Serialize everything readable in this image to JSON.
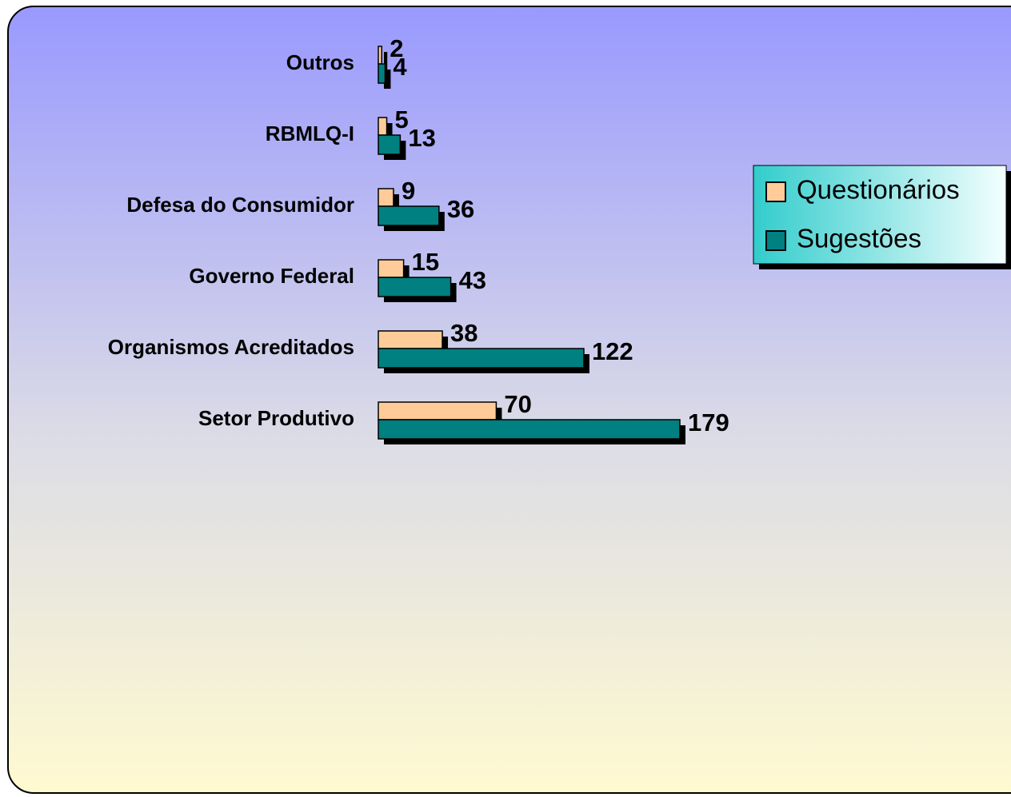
{
  "chart_data": {
    "type": "bar",
    "orientation": "horizontal",
    "categories": [
      "Outros",
      "RBMLQ-I",
      "Defesa do Consumidor",
      "Governo Federal",
      "Organismos Acreditados",
      "Setor Produtivo"
    ],
    "series": [
      {
        "name": "Questionários",
        "color": "#ffcc99",
        "values": [
          2,
          5,
          9,
          15,
          38,
          70
        ]
      },
      {
        "name": "Sugestões",
        "color": "#008080",
        "values": [
          4,
          13,
          36,
          43,
          122,
          179
        ]
      }
    ],
    "legend": "right"
  }
}
